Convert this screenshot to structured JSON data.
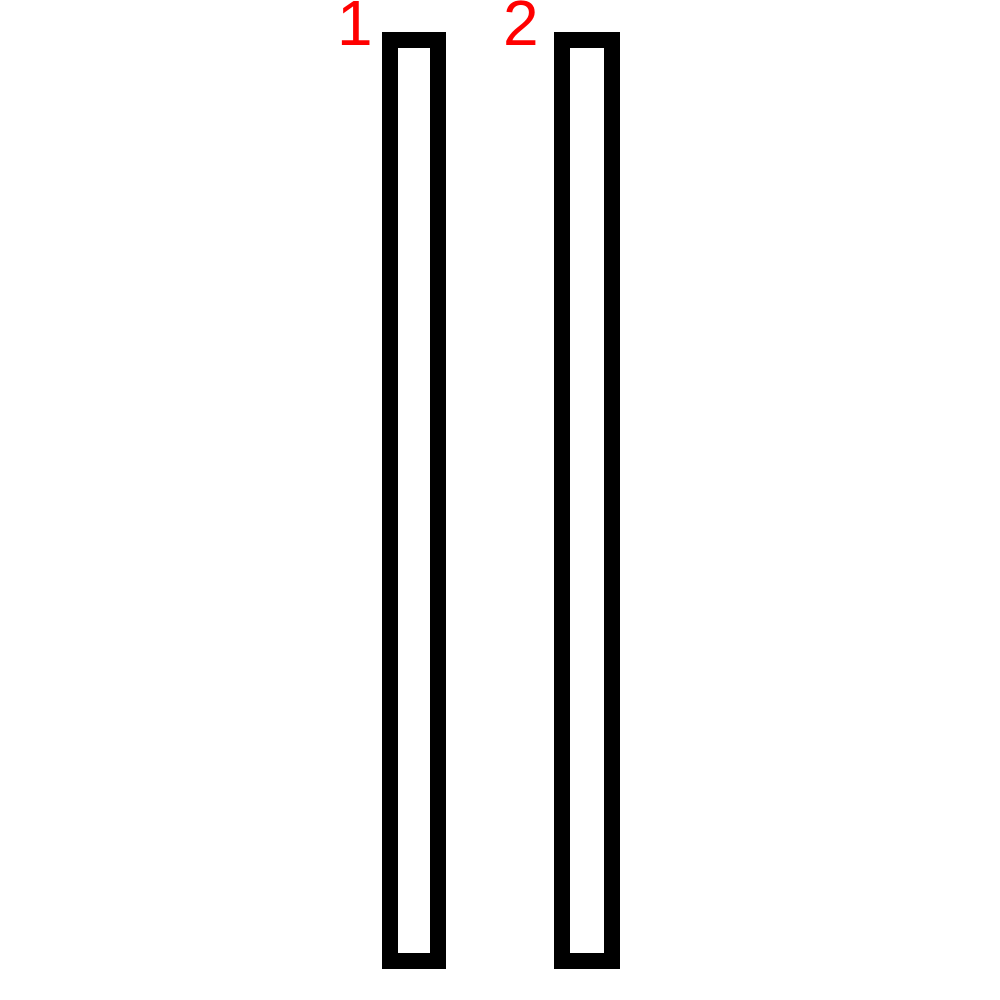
{
  "diagram": {
    "label_color": "#ff0000",
    "stroke_color": "#000000",
    "background_color": "#ffffff",
    "bars": [
      {
        "label": "1"
      },
      {
        "label": "2"
      }
    ]
  }
}
